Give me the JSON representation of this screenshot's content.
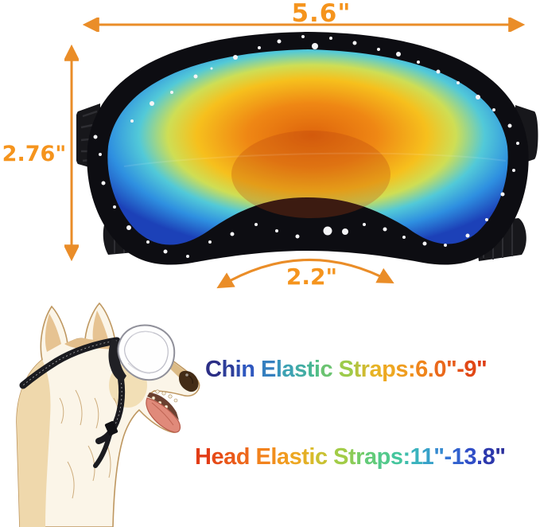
{
  "measurements": {
    "frame_width": "5.6\"",
    "frame_height": "2.76\"",
    "bridge_width": "2.2\""
  },
  "strap_info": {
    "chin": "Chin Elastic Straps:6.0\"-9\"",
    "head": "Head Elastic Straps:11\"-13.8\""
  },
  "colors": {
    "measurement_text": "#F5941D",
    "arrow": "#EA8D28",
    "goggle_frame": "#0D0D12",
    "lens_core": "#DE640C",
    "lens_yellow": "#F6C01D",
    "lens_edge_blue": "#1C41B8",
    "chin_gradient": [
      "#2C2F86",
      "#2F5BC4",
      "#3A9DBB",
      "#4CBE8A",
      "#9DCB4A",
      "#EDB122",
      "#F08C1C",
      "#E85E1C",
      "#DE3E14"
    ],
    "head_gradient": [
      "#E23C16",
      "#EC611B",
      "#F2831C",
      "#F0A321",
      "#D9BC2A",
      "#A8CC42",
      "#6FCC6C",
      "#45C89A",
      "#38AFC4",
      "#3375D6",
      "#2F46C4",
      "#2A2F9C"
    ]
  }
}
